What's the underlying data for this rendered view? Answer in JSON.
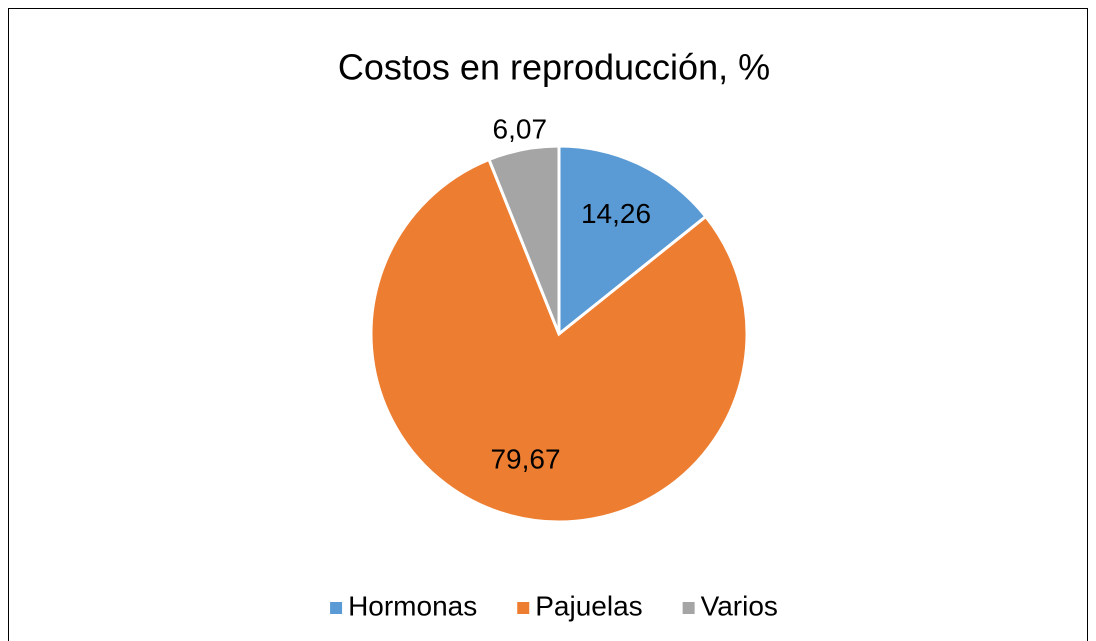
{
  "chart_data": {
    "type": "pie",
    "title": "Costos en reproducción, %",
    "categories": [
      "Hormonas",
      "Pajuelas",
      "Varios"
    ],
    "values": [
      14.26,
      79.67,
      6.07
    ],
    "value_labels": [
      "14,26",
      "79,67",
      "6,07"
    ],
    "colors": [
      "#5b9bd5",
      "#ed7d31",
      "#a5a5a5"
    ],
    "legend": "bottom"
  }
}
